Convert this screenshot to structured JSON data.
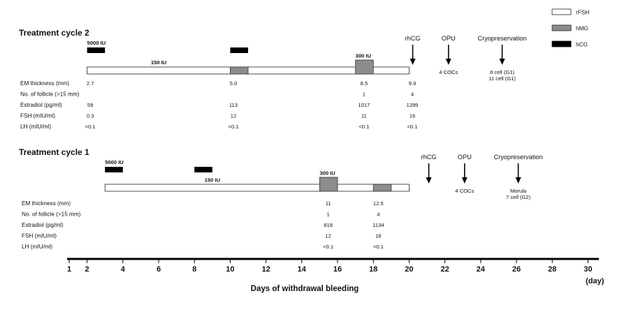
{
  "legend": {
    "items": [
      {
        "label": "rFSH",
        "fill": "#ffffff"
      },
      {
        "label": "hMG",
        "fill": "#8c8c8c"
      },
      {
        "label": "hCG",
        "fill": "#000000"
      }
    ]
  },
  "cycles": [
    {
      "title": "Treatment cycle 2",
      "hcg_blocks": [
        {
          "start": 2.0,
          "end": 3.0,
          "label": "5000 IU"
        },
        {
          "start": 10.0,
          "end": 11.0,
          "label": ""
        }
      ],
      "rfsh_bar": {
        "start": 2.0,
        "end": 20.0,
        "label": "150 IU"
      },
      "hmg_blocks": [
        {
          "start": 10.0,
          "end": 11.0,
          "label": ""
        },
        {
          "start": 17.0,
          "end": 18.0,
          "label": "300 IU"
        }
      ],
      "events": [
        {
          "day": 20.2,
          "label": "rhCG",
          "note_lines": []
        },
        {
          "day": 22.2,
          "label": "OPU",
          "note_lines": [
            "4 COCs"
          ]
        },
        {
          "day": 25.2,
          "label": "Cryopreservation",
          "note_lines": [
            "8 cell (G1)",
            "11 cell (G1)"
          ]
        }
      ],
      "rows": [
        {
          "label": "EM thickness (mm)",
          "values": [
            {
              "day": 2.1,
              "text": "2.7"
            },
            {
              "day": 10.1,
              "text": "5.0"
            },
            {
              "day": 17.4,
              "text": "8.5"
            },
            {
              "day": 20.1,
              "text": "9.9"
            }
          ]
        },
        {
          "label": "No. of follicle (>15 mm)",
          "values": [
            {
              "day": 17.4,
              "text": "1"
            },
            {
              "day": 20.1,
              "text": "4"
            }
          ]
        },
        {
          "label": "Estradiol (pg/ml)",
          "values": [
            {
              "day": 2.1,
              "text": "59"
            },
            {
              "day": 10.1,
              "text": "113"
            },
            {
              "day": 17.4,
              "text": "1017"
            },
            {
              "day": 20.1,
              "text": "1289"
            }
          ]
        },
        {
          "label": "FSH (mIU/ml)",
          "values": [
            {
              "day": 2.1,
              "text": "0.3"
            },
            {
              "day": 10.1,
              "text": "12"
            },
            {
              "day": 17.4,
              "text": "11"
            },
            {
              "day": 20.1,
              "text": "16"
            }
          ]
        },
        {
          "label": "LH (mIU/ml)",
          "values": [
            {
              "day": 2.1,
              "text": "<0.1"
            },
            {
              "day": 10.1,
              "text": "<0.1"
            },
            {
              "day": 17.4,
              "text": "<0.1"
            },
            {
              "day": 20.1,
              "text": "<0.1"
            }
          ]
        }
      ]
    },
    {
      "title": "Treatment cycle 1",
      "hcg_blocks": [
        {
          "start": 3.0,
          "end": 4.0,
          "label": "5000 IU"
        },
        {
          "start": 8.0,
          "end": 9.0,
          "label": ""
        }
      ],
      "rfsh_bar": {
        "start": 3.0,
        "end": 20.0,
        "label": "150 IU"
      },
      "hmg_blocks": [
        {
          "start": 15.0,
          "end": 16.0,
          "label": "300 IU"
        },
        {
          "start": 18.0,
          "end": 19.0,
          "label": ""
        }
      ],
      "events": [
        {
          "day": 21.1,
          "label": "rhCG",
          "note_lines": []
        },
        {
          "day": 23.1,
          "label": "OPU",
          "note_lines": [
            "4 COCs"
          ]
        },
        {
          "day": 26.1,
          "label": "Cryopreservation",
          "note_lines": [
            "Morula",
            "7 cell (G2)"
          ]
        }
      ],
      "rows": [
        {
          "label": "EM thickness (mm)",
          "values": [
            {
              "day": 15.4,
              "text": "11"
            },
            {
              "day": 18.2,
              "text": "12.5"
            }
          ]
        },
        {
          "label": "No. of follicle (>15 mm)",
          "values": [
            {
              "day": 15.4,
              "text": "1"
            },
            {
              "day": 18.2,
              "text": "4"
            }
          ]
        },
        {
          "label": "Estradiol (pg/ml)",
          "values": [
            {
              "day": 15.4,
              "text": "818"
            },
            {
              "day": 18.2,
              "text": "1134"
            }
          ]
        },
        {
          "label": "FSH (mIU/ml)",
          "values": [
            {
              "day": 15.4,
              "text": "12"
            },
            {
              "day": 18.2,
              "text": "18"
            }
          ]
        },
        {
          "label": "LH (mIU/ml)",
          "values": [
            {
              "day": 15.4,
              "text": "<0.1"
            },
            {
              "day": 18.2,
              "text": "<0.1"
            }
          ]
        }
      ]
    }
  ],
  "axis": {
    "min": 1,
    "max": 30,
    "ticks": [
      1,
      2,
      4,
      6,
      8,
      10,
      12,
      14,
      16,
      18,
      20,
      22,
      24,
      26,
      28,
      30
    ],
    "title": "Days of withdrawal bleeding",
    "unit": "(day)"
  }
}
